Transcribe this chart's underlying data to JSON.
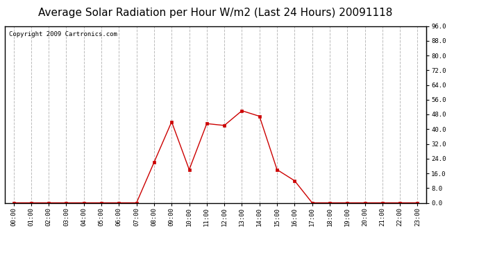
{
  "title": "Average Solar Radiation per Hour W/m2 (Last 24 Hours) 20091118",
  "copyright": "Copyright 2009 Cartronics.com",
  "hours": [
    "00:00",
    "01:00",
    "02:00",
    "03:00",
    "04:00",
    "05:00",
    "06:00",
    "07:00",
    "08:00",
    "09:00",
    "10:00",
    "11:00",
    "12:00",
    "13:00",
    "14:00",
    "15:00",
    "16:00",
    "17:00",
    "18:00",
    "19:00",
    "20:00",
    "21:00",
    "22:00",
    "23:00"
  ],
  "values": [
    0,
    0,
    0,
    0,
    0,
    0,
    0,
    0,
    22,
    44,
    18,
    43,
    42,
    50,
    47,
    18,
    12,
    0,
    0,
    0,
    0,
    0,
    0,
    0
  ],
  "line_color": "#cc0000",
  "marker": "s",
  "marker_color": "#cc0000",
  "marker_size": 3,
  "bg_color": "#ffffff",
  "plot_bg_color": "#ffffff",
  "grid_color": "#bbbbbb",
  "grid_style": "--",
  "ylim": [
    0,
    96
  ],
  "yticks": [
    0.0,
    8.0,
    16.0,
    24.0,
    32.0,
    40.0,
    48.0,
    56.0,
    64.0,
    72.0,
    80.0,
    88.0,
    96.0
  ],
  "title_fontsize": 11,
  "copyright_fontsize": 6.5,
  "tick_fontsize": 6.5,
  "border_color": "#000000"
}
